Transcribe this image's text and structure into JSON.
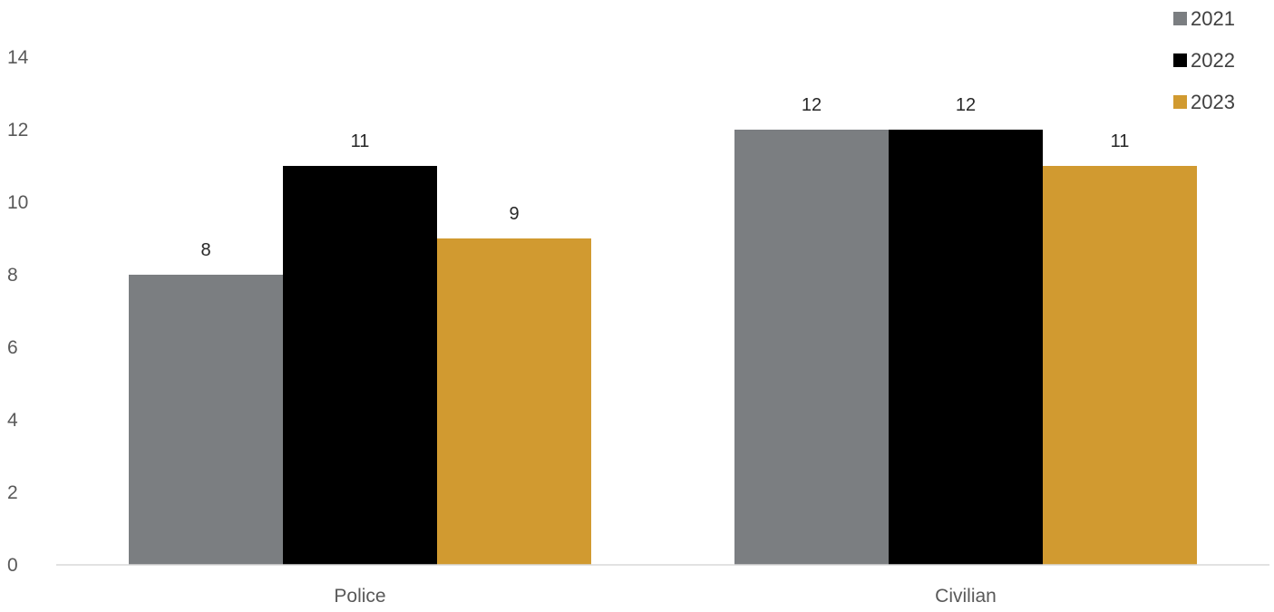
{
  "chart_data": {
    "type": "bar",
    "title": "",
    "xlabel": "",
    "ylabel": "",
    "categories": [
      "Police",
      "Civilian"
    ],
    "series": [
      {
        "name": "2021",
        "values": [
          8,
          12
        ],
        "color": "#7b7e81"
      },
      {
        "name": "2022",
        "values": [
          11,
          12
        ],
        "color": "#000000"
      },
      {
        "name": "2023",
        "values": [
          9,
          11
        ],
        "color": "#d19a30"
      }
    ],
    "ylim": [
      0,
      14
    ],
    "yticks": [
      0,
      2,
      4,
      6,
      8,
      10,
      12,
      14
    ],
    "grid": false,
    "data_labels": true,
    "legend_position": "top-right"
  }
}
